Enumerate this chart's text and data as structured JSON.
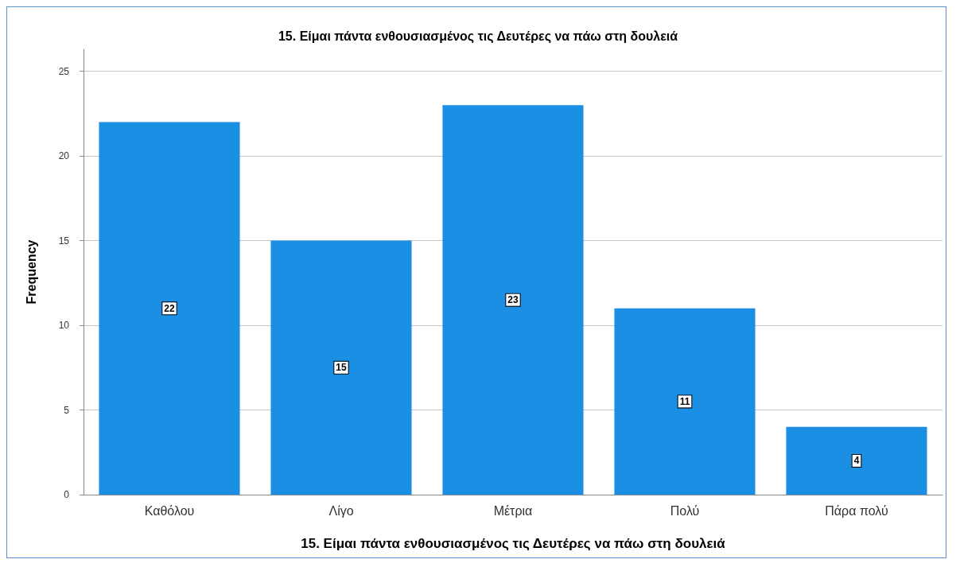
{
  "chart_data": {
    "type": "bar",
    "title": "15. Είμαι πάντα ενθουσιασμένος τις Δευτέρες να πάω στη δουλειά",
    "xlabel": "15. Είμαι πάντα ενθουσιασμένος τις Δευτέρες να πάω στη δουλειά",
    "ylabel": "Frequency",
    "categories": [
      "Καθόλου",
      "Λίγο",
      "Μέτρια",
      "Πολύ",
      "Πάρα πολύ"
    ],
    "values": [
      22,
      15,
      23,
      11,
      4
    ],
    "color": "#1a8fe3",
    "ylim": [
      0,
      26.3
    ],
    "yticks": [
      0,
      5,
      10,
      15,
      20,
      25
    ],
    "grid": "y",
    "data_labels": true
  }
}
